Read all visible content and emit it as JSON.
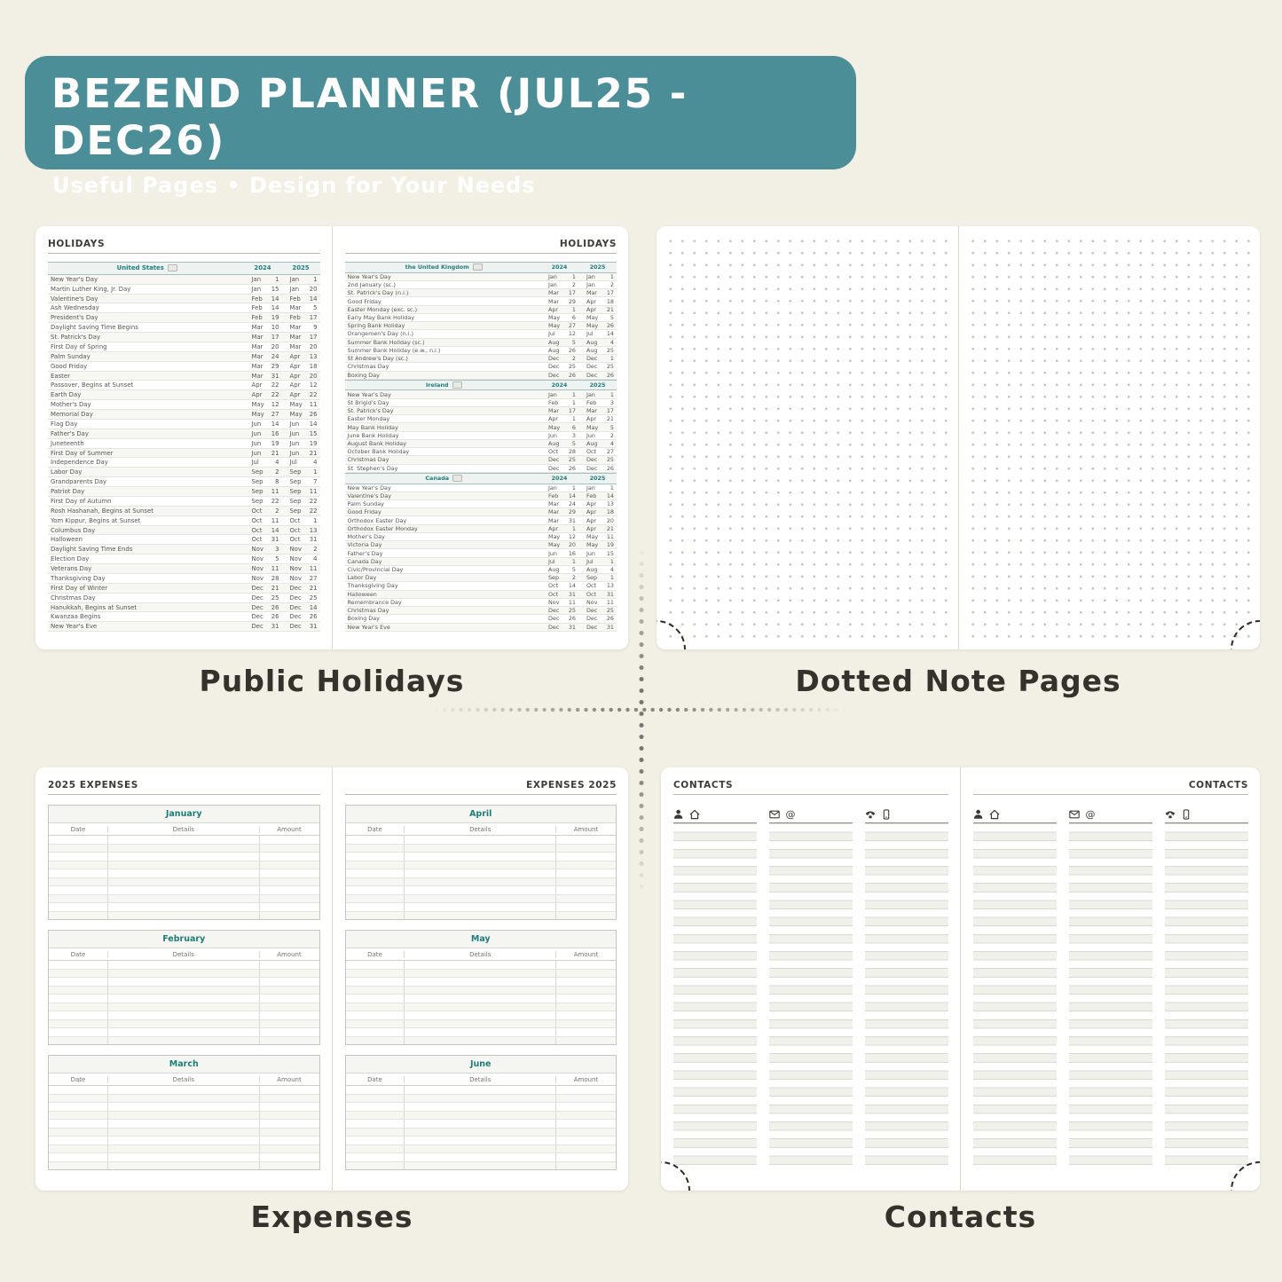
{
  "header": {
    "title": "BEZEND PLANNER (JUL25 - DEC26)",
    "subtitle": "Useful Pages  •  Design for Your Needs"
  },
  "captions": {
    "top_left": "Public Holidays",
    "top_right": "Dotted Note Pages",
    "bottom_left": "Expenses",
    "bottom_right": "Contacts"
  },
  "colors": {
    "banner_teal": "#4b8e97",
    "accent_teal": "#1f7d7d",
    "canvas_cream": "#f2efe4"
  },
  "holidays": {
    "page_title": "HOLIDAYS",
    "years": [
      "2024",
      "2025"
    ],
    "left_sections": [
      {
        "country": "United States",
        "rows": [
          [
            "New Year's Day",
            "Jan",
            1,
            "Jan",
            1
          ],
          [
            "Martin Luther King, Jr. Day",
            "Jan",
            15,
            "Jan",
            20
          ],
          [
            "Valentine's Day",
            "Feb",
            14,
            "Feb",
            14
          ],
          [
            "Ash Wednesday",
            "Feb",
            14,
            "Mar",
            5
          ],
          [
            "President's Day",
            "Feb",
            19,
            "Feb",
            17
          ],
          [
            "Daylight Saving Time Begins",
            "Mar",
            10,
            "Mar",
            9
          ],
          [
            "St. Patrick's Day",
            "Mar",
            17,
            "Mar",
            17
          ],
          [
            "First Day of Spring",
            "Mar",
            20,
            "Mar",
            20
          ],
          [
            "Palm Sunday",
            "Mar",
            24,
            "Apr",
            13
          ],
          [
            "Good Friday",
            "Mar",
            29,
            "Apr",
            18
          ],
          [
            "Easter",
            "Mar",
            31,
            "Apr",
            20
          ],
          [
            "Passover, Begins at Sunset",
            "Apr",
            22,
            "Apr",
            12
          ],
          [
            "Earth Day",
            "Apr",
            22,
            "Apr",
            22
          ],
          [
            "Mother's Day",
            "May",
            12,
            "May",
            11
          ],
          [
            "Memorial Day",
            "May",
            27,
            "May",
            26
          ],
          [
            "Flag Day",
            "Jun",
            14,
            "Jun",
            14
          ],
          [
            "Father's Day",
            "Jun",
            16,
            "Jun",
            15
          ],
          [
            "Juneteenth",
            "Jun",
            19,
            "Jun",
            19
          ],
          [
            "First Day of Summer",
            "Jun",
            21,
            "Jun",
            21
          ],
          [
            "Independence Day",
            "Jul",
            4,
            "Jul",
            4
          ],
          [
            "Labor Day",
            "Sep",
            2,
            "Sep",
            1
          ],
          [
            "Grandparents Day",
            "Sep",
            8,
            "Sep",
            7
          ],
          [
            "Patriot Day",
            "Sep",
            11,
            "Sep",
            11
          ],
          [
            "First Day of Autumn",
            "Sep",
            22,
            "Sep",
            22
          ],
          [
            "Rosh Hashanah, Begins at Sunset",
            "Oct",
            2,
            "Sep",
            22
          ],
          [
            "Yom Kippur, Begins at Sunset",
            "Oct",
            11,
            "Oct",
            1
          ],
          [
            "Columbus Day",
            "Oct",
            14,
            "Oct",
            13
          ],
          [
            "Halloween",
            "Oct",
            31,
            "Oct",
            31
          ],
          [
            "Daylight Saving Time Ends",
            "Nov",
            3,
            "Nov",
            2
          ],
          [
            "Election Day",
            "Nov",
            5,
            "Nov",
            4
          ],
          [
            "Veterans Day",
            "Nov",
            11,
            "Nov",
            11
          ],
          [
            "Thanksgiving Day",
            "Nov",
            28,
            "Nov",
            27
          ],
          [
            "First Day of Winter",
            "Dec",
            21,
            "Dec",
            21
          ],
          [
            "Christmas Day",
            "Dec",
            25,
            "Dec",
            25
          ],
          [
            "Hanukkah, Begins at Sunset",
            "Dec",
            26,
            "Dec",
            14
          ],
          [
            "Kwanzaa Begins",
            "Dec",
            26,
            "Dec",
            26
          ],
          [
            "New Year's Eve",
            "Dec",
            31,
            "Dec",
            31
          ]
        ]
      }
    ],
    "right_sections": [
      {
        "country": "the United Kingdom",
        "rows": [
          [
            "New Year's Day",
            "Jan",
            1,
            "Jan",
            1
          ],
          [
            "2nd January (sc.)",
            "Jan",
            2,
            "Jan",
            2
          ],
          [
            "St. Patrick's Day (n.i.)",
            "Mar",
            17,
            "Mar",
            17
          ],
          [
            "Good Friday",
            "Mar",
            29,
            "Apr",
            18
          ],
          [
            "Easter Monday (exc. sc.)",
            "Apr",
            1,
            "Apr",
            21
          ],
          [
            "Early May Bank Holiday",
            "May",
            6,
            "May",
            5
          ],
          [
            "Spring Bank Holiday",
            "May",
            27,
            "May",
            26
          ],
          [
            "Orangemen's Day (n.i.)",
            "Jul",
            12,
            "Jul",
            14
          ],
          [
            "Summer Bank Holiday (sc.)",
            "Aug",
            5,
            "Aug",
            4
          ],
          [
            "Summer Bank Holiday (e.w., n.i.)",
            "Aug",
            26,
            "Aug",
            25
          ],
          [
            "St Andrew's Day (sc.)",
            "Dec",
            2,
            "Dec",
            1
          ],
          [
            "Christmas Day",
            "Dec",
            25,
            "Dec",
            25
          ],
          [
            "Boxing Day",
            "Dec",
            26,
            "Dec",
            26
          ]
        ]
      },
      {
        "country": "Ireland",
        "rows": [
          [
            "New Year's Day",
            "Jan",
            1,
            "Jan",
            1
          ],
          [
            "St Brigid's Day",
            "Feb",
            1,
            "Feb",
            3
          ],
          [
            "St. Patrick's Day",
            "Mar",
            17,
            "Mar",
            17
          ],
          [
            "Easter Monday",
            "Apr",
            1,
            "Apr",
            21
          ],
          [
            "May Bank Holiday",
            "May",
            6,
            "May",
            5
          ],
          [
            "June Bank Holiday",
            "Jun",
            3,
            "Jun",
            2
          ],
          [
            "August Bank Holiday",
            "Aug",
            5,
            "Aug",
            4
          ],
          [
            "October Bank Holiday",
            "Oct",
            28,
            "Oct",
            27
          ],
          [
            "Christmas Day",
            "Dec",
            25,
            "Dec",
            25
          ],
          [
            "St. Stephen's Day",
            "Dec",
            26,
            "Dec",
            26
          ]
        ]
      },
      {
        "country": "Canada",
        "rows": [
          [
            "New Year's Day",
            "Jan",
            1,
            "Jan",
            1
          ],
          [
            "Valentine's Day",
            "Feb",
            14,
            "Feb",
            14
          ],
          [
            "Palm Sunday",
            "Mar",
            24,
            "Apr",
            13
          ],
          [
            "Good Friday",
            "Mar",
            29,
            "Apr",
            18
          ],
          [
            "Orthodox Easter Day",
            "Mar",
            31,
            "Apr",
            20
          ],
          [
            "Orthodox Easter Monday",
            "Apr",
            1,
            "Apr",
            21
          ],
          [
            "Mother's Day",
            "May",
            12,
            "May",
            11
          ],
          [
            "Victoria Day",
            "May",
            20,
            "May",
            19
          ],
          [
            "Father's Day",
            "Jun",
            16,
            "Jun",
            15
          ],
          [
            "Canada Day",
            "Jul",
            1,
            "Jul",
            1
          ],
          [
            "Civic/Provincial Day",
            "Aug",
            5,
            "Aug",
            4
          ],
          [
            "Labor Day",
            "Sep",
            2,
            "Sep",
            1
          ],
          [
            "Thanksgiving Day",
            "Oct",
            14,
            "Oct",
            13
          ],
          [
            "Halloween",
            "Oct",
            31,
            "Oct",
            31
          ],
          [
            "Remembrance Day",
            "Nov",
            11,
            "Nov",
            11
          ],
          [
            "Christmas Day",
            "Dec",
            25,
            "Dec",
            25
          ],
          [
            "Boxing Day",
            "Dec",
            26,
            "Dec",
            26
          ],
          [
            "New Year's Eve",
            "Dec",
            31,
            "Dec",
            31
          ]
        ]
      }
    ]
  },
  "expenses": {
    "left_title": "2025 EXPENSES",
    "right_title": "EXPENSES 2025",
    "columns": [
      "Date",
      "Details",
      "Amount"
    ],
    "left_months": [
      "January",
      "February",
      "March"
    ],
    "right_months": [
      "April",
      "May",
      "June"
    ],
    "rows_per_table": 10
  },
  "contacts": {
    "page_title": "CONTACTS",
    "columns": [
      {
        "icons": [
          "person-icon",
          "home-icon"
        ]
      },
      {
        "icons": [
          "mail-icon",
          "at-icon"
        ]
      },
      {
        "icons": [
          "phone-icon",
          "mobile-icon"
        ]
      }
    ]
  }
}
